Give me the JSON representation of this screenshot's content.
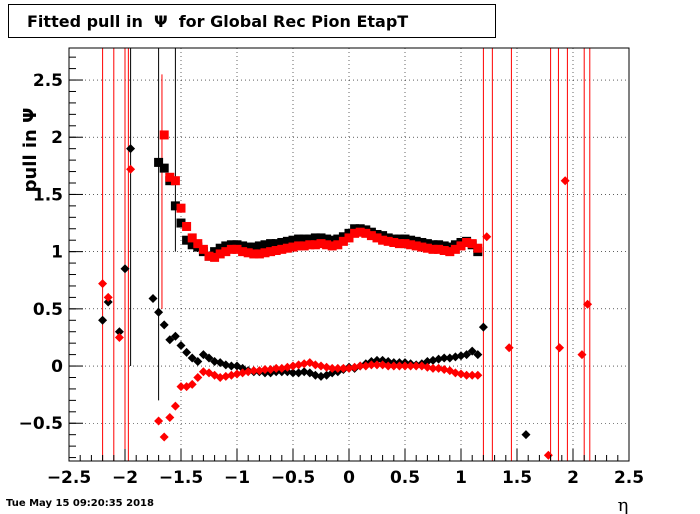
{
  "title": "Fitted pull in  Ψ  for Global Rec Pion EtapT",
  "timestamp": "Tue May 15 09:20:35 2018",
  "chart_data": {
    "type": "scatter",
    "title": "Fitted pull in  Ψ  for Global Rec Pion EtapT",
    "xlabel": "η",
    "ylabel": "pull in Ψ",
    "xlim": [
      -2.5,
      2.5
    ],
    "ylim": [
      -0.83,
      2.78
    ],
    "grid": true,
    "x_ticks": [
      -2.5,
      -2,
      -1.5,
      -1,
      -0.5,
      0,
      0.5,
      1,
      1.5,
      2,
      2.5
    ],
    "x_tick_labels": [
      "−2.5",
      "−2",
      "−1.5",
      "−1",
      "−0.5",
      "0",
      "0.5",
      "1",
      "1.5",
      "2",
      "2.5"
    ],
    "y_ticks": [
      -0.5,
      0,
      0.5,
      1,
      1.5,
      2,
      2.5
    ],
    "y_tick_labels": [
      "−0.5",
      "0",
      "0.5",
      "1",
      "1.5",
      "2",
      "2.5"
    ],
    "series": [
      {
        "color": "#000000",
        "marker": "square",
        "points": [
          [
            -1.7,
            1.78
          ],
          [
            -1.65,
            1.73
          ],
          [
            -1.6,
            1.62
          ],
          [
            -1.55,
            1.4
          ],
          [
            -1.5,
            1.25
          ],
          [
            -1.45,
            1.1
          ],
          [
            -1.4,
            1.06
          ],
          [
            -1.35,
            1.04
          ],
          [
            -1.3,
            1.0
          ],
          [
            -1.25,
            0.96
          ],
          [
            -1.2,
            1.0
          ],
          [
            -1.15,
            1.03
          ],
          [
            -1.1,
            1.05
          ],
          [
            -1.05,
            1.06
          ],
          [
            -1.0,
            1.06
          ],
          [
            -0.95,
            1.05
          ],
          [
            -0.9,
            1.04
          ],
          [
            -0.85,
            1.04
          ],
          [
            -0.8,
            1.05
          ],
          [
            -0.75,
            1.06
          ],
          [
            -0.7,
            1.07
          ],
          [
            -0.65,
            1.07
          ],
          [
            -0.6,
            1.08
          ],
          [
            -0.55,
            1.09
          ],
          [
            -0.5,
            1.1
          ],
          [
            -0.45,
            1.11
          ],
          [
            -0.4,
            1.11
          ],
          [
            -0.35,
            1.11
          ],
          [
            -0.3,
            1.12
          ],
          [
            -0.25,
            1.12
          ],
          [
            -0.2,
            1.11
          ],
          [
            -0.15,
            1.1
          ],
          [
            -0.1,
            1.11
          ],
          [
            -0.05,
            1.13
          ],
          [
            0.0,
            1.16
          ],
          [
            0.05,
            1.2
          ],
          [
            0.1,
            1.2
          ],
          [
            0.15,
            1.19
          ],
          [
            0.2,
            1.17
          ],
          [
            0.25,
            1.15
          ],
          [
            0.3,
            1.14
          ],
          [
            0.35,
            1.12
          ],
          [
            0.4,
            1.11
          ],
          [
            0.45,
            1.11
          ],
          [
            0.5,
            1.11
          ],
          [
            0.55,
            1.1
          ],
          [
            0.6,
            1.09
          ],
          [
            0.65,
            1.08
          ],
          [
            0.7,
            1.07
          ],
          [
            0.75,
            1.06
          ],
          [
            0.8,
            1.06
          ],
          [
            0.85,
            1.05
          ],
          [
            0.9,
            1.04
          ],
          [
            0.95,
            1.06
          ],
          [
            1.0,
            1.08
          ],
          [
            1.05,
            1.09
          ],
          [
            1.1,
            1.06
          ],
          [
            1.15,
            1.0
          ]
        ],
        "markers": [
          [
            -2.2,
            0.4
          ],
          [
            -2.15,
            0.56
          ],
          [
            -2.05,
            0.3
          ],
          [
            -2.0,
            0.85
          ],
          [
            -1.95,
            1.9
          ],
          [
            -1.75,
            0.59
          ],
          [
            -1.7,
            0.47
          ],
          [
            -1.65,
            0.36
          ],
          [
            -1.6,
            0.23
          ],
          [
            -1.55,
            0.26
          ],
          [
            -1.5,
            0.18
          ],
          [
            -1.45,
            0.12
          ],
          [
            -1.4,
            0.07
          ],
          [
            -1.35,
            0.04
          ],
          [
            -1.3,
            0.1
          ],
          [
            -1.25,
            0.07
          ],
          [
            -1.2,
            0.04
          ],
          [
            -1.15,
            0.03
          ],
          [
            -1.1,
            0.01
          ],
          [
            -1.05,
            0.0
          ],
          [
            -1.0,
            0.0
          ],
          [
            -0.95,
            -0.02
          ],
          [
            -0.9,
            -0.04
          ],
          [
            -0.85,
            -0.05
          ],
          [
            -0.8,
            -0.05
          ],
          [
            -0.75,
            -0.06
          ],
          [
            -0.7,
            -0.06
          ],
          [
            -0.65,
            -0.05
          ],
          [
            -0.6,
            -0.05
          ],
          [
            -0.55,
            -0.05
          ],
          [
            -0.5,
            -0.06
          ],
          [
            -0.45,
            -0.06
          ],
          [
            -0.4,
            -0.05
          ],
          [
            -0.35,
            -0.06
          ],
          [
            -0.3,
            -0.08
          ],
          [
            -0.25,
            -0.09
          ],
          [
            -0.2,
            -0.08
          ],
          [
            -0.15,
            -0.06
          ],
          [
            -0.1,
            -0.05
          ],
          [
            -0.05,
            -0.03
          ],
          [
            0.0,
            -0.01
          ],
          [
            0.05,
            -0.02
          ],
          [
            0.1,
            0.0
          ],
          [
            0.15,
            0.02
          ],
          [
            0.2,
            0.04
          ],
          [
            0.25,
            0.05
          ],
          [
            0.3,
            0.05
          ],
          [
            0.35,
            0.04
          ],
          [
            0.4,
            0.03
          ],
          [
            0.45,
            0.03
          ],
          [
            0.5,
            0.03
          ],
          [
            0.55,
            0.02
          ],
          [
            0.6,
            0.01
          ],
          [
            0.65,
            0.02
          ],
          [
            0.7,
            0.04
          ],
          [
            0.75,
            0.05
          ],
          [
            0.8,
            0.06
          ],
          [
            0.85,
            0.07
          ],
          [
            0.9,
            0.07
          ],
          [
            0.95,
            0.08
          ],
          [
            1.0,
            0.09
          ],
          [
            1.05,
            0.1
          ],
          [
            1.1,
            0.13
          ],
          [
            1.15,
            0.1
          ],
          [
            1.2,
            0.34
          ],
          [
            1.58,
            -0.6
          ]
        ],
        "error_bars": [
          [
            -1.95,
            0.0,
            2.8
          ],
          [
            -1.7,
            -0.3,
            2.8
          ],
          [
            -1.55,
            1.0,
            2.8
          ]
        ]
      },
      {
        "color": "#ff0000",
        "marker": "square",
        "points": [
          [
            -1.65,
            2.02
          ],
          [
            -1.6,
            1.65
          ],
          [
            -1.55,
            1.62
          ],
          [
            -1.5,
            1.38
          ],
          [
            -1.45,
            1.22
          ],
          [
            -1.4,
            1.12
          ],
          [
            -1.35,
            1.07
          ],
          [
            -1.3,
            1.02
          ],
          [
            -1.25,
            0.96
          ],
          [
            -1.2,
            0.95
          ],
          [
            -1.15,
            0.98
          ],
          [
            -1.1,
            1.0
          ],
          [
            -1.05,
            1.02
          ],
          [
            -1.0,
            1.02
          ],
          [
            -0.95,
            1.0
          ],
          [
            -0.9,
            0.99
          ],
          [
            -0.85,
            0.98
          ],
          [
            -0.8,
            0.98
          ],
          [
            -0.75,
            0.99
          ],
          [
            -0.7,
            1.0
          ],
          [
            -0.65,
            1.01
          ],
          [
            -0.6,
            1.02
          ],
          [
            -0.55,
            1.03
          ],
          [
            -0.5,
            1.04
          ],
          [
            -0.45,
            1.05
          ],
          [
            -0.4,
            1.05
          ],
          [
            -0.35,
            1.06
          ],
          [
            -0.3,
            1.06
          ],
          [
            -0.25,
            1.07
          ],
          [
            -0.2,
            1.06
          ],
          [
            -0.15,
            1.05
          ],
          [
            -0.1,
            1.06
          ],
          [
            -0.05,
            1.09
          ],
          [
            0.0,
            1.12
          ],
          [
            0.05,
            1.16
          ],
          [
            0.1,
            1.17
          ],
          [
            0.15,
            1.16
          ],
          [
            0.2,
            1.14
          ],
          [
            0.25,
            1.12
          ],
          [
            0.3,
            1.1
          ],
          [
            0.35,
            1.09
          ],
          [
            0.4,
            1.08
          ],
          [
            0.45,
            1.07
          ],
          [
            0.5,
            1.07
          ],
          [
            0.55,
            1.06
          ],
          [
            0.6,
            1.05
          ],
          [
            0.65,
            1.04
          ],
          [
            0.7,
            1.03
          ],
          [
            0.75,
            1.02
          ],
          [
            0.8,
            1.02
          ],
          [
            0.85,
            1.01
          ],
          [
            0.9,
            1.0
          ],
          [
            0.95,
            1.02
          ],
          [
            1.0,
            1.05
          ],
          [
            1.05,
            1.08
          ],
          [
            1.1,
            1.07
          ],
          [
            1.15,
            1.03
          ]
        ],
        "markers": [
          [
            -2.2,
            0.72
          ],
          [
            -2.15,
            0.6
          ],
          [
            -2.05,
            0.25
          ],
          [
            -1.95,
            1.72
          ],
          [
            -1.7,
            -0.48
          ],
          [
            -1.65,
            -0.62
          ],
          [
            -1.6,
            -0.45
          ],
          [
            -1.55,
            -0.35
          ],
          [
            -1.5,
            -0.18
          ],
          [
            -1.45,
            -0.18
          ],
          [
            -1.4,
            -0.16
          ],
          [
            -1.35,
            -0.1
          ],
          [
            -1.3,
            -0.05
          ],
          [
            -1.25,
            -0.06
          ],
          [
            -1.2,
            -0.08
          ],
          [
            -1.15,
            -0.1
          ],
          [
            -1.1,
            -0.09
          ],
          [
            -1.05,
            -0.08
          ],
          [
            -1.0,
            -0.07
          ],
          [
            -0.95,
            -0.06
          ],
          [
            -0.9,
            -0.05
          ],
          [
            -0.85,
            -0.04
          ],
          [
            -0.8,
            -0.04
          ],
          [
            -0.75,
            -0.03
          ],
          [
            -0.7,
            -0.03
          ],
          [
            -0.65,
            -0.02
          ],
          [
            -0.6,
            -0.02
          ],
          [
            -0.55,
            -0.01
          ],
          [
            -0.5,
            0.0
          ],
          [
            -0.45,
            0.01
          ],
          [
            -0.4,
            0.02
          ],
          [
            -0.35,
            0.03
          ],
          [
            -0.3,
            0.01
          ],
          [
            -0.25,
            0.0
          ],
          [
            -0.2,
            -0.01
          ],
          [
            -0.15,
            -0.02
          ],
          [
            -0.1,
            -0.02
          ],
          [
            -0.05,
            -0.02
          ],
          [
            0.0,
            -0.02
          ],
          [
            0.05,
            -0.01
          ],
          [
            0.1,
            0.0
          ],
          [
            0.15,
            0.0
          ],
          [
            0.2,
            0.01
          ],
          [
            0.25,
            0.01
          ],
          [
            0.3,
            0.01
          ],
          [
            0.35,
            0.0
          ],
          [
            0.4,
            0.0
          ],
          [
            0.45,
            0.0
          ],
          [
            0.5,
            0.0
          ],
          [
            0.55,
            0.0
          ],
          [
            0.6,
            0.0
          ],
          [
            0.65,
            0.0
          ],
          [
            0.7,
            -0.01
          ],
          [
            0.75,
            -0.02
          ],
          [
            0.8,
            -0.02
          ],
          [
            0.85,
            -0.03
          ],
          [
            0.9,
            -0.04
          ],
          [
            0.95,
            -0.06
          ],
          [
            1.0,
            -0.07
          ],
          [
            1.05,
            -0.08
          ],
          [
            1.1,
            -0.08
          ],
          [
            1.15,
            -0.08
          ],
          [
            1.23,
            1.13
          ],
          [
            1.43,
            0.16
          ],
          [
            1.78,
            -0.78
          ],
          [
            1.88,
            0.16
          ],
          [
            1.93,
            1.62
          ],
          [
            2.08,
            0.1
          ],
          [
            2.13,
            0.54
          ]
        ],
        "error_bars": [
          [
            -2.2,
            -0.83,
            2.78
          ],
          [
            -2.1,
            -0.83,
            2.78
          ],
          [
            -2.0,
            -0.83,
            2.78
          ],
          [
            -1.97,
            -0.83,
            2.78
          ],
          [
            -1.67,
            0.5,
            2.55
          ],
          [
            1.2,
            -0.83,
            2.78
          ],
          [
            1.28,
            -0.83,
            2.78
          ],
          [
            1.45,
            -0.83,
            2.78
          ],
          [
            1.8,
            -0.83,
            2.78
          ],
          [
            1.87,
            -0.83,
            2.78
          ],
          [
            1.95,
            -0.83,
            2.78
          ],
          [
            2.1,
            -0.83,
            2.78
          ],
          [
            2.15,
            -0.83,
            2.78
          ]
        ]
      }
    ]
  }
}
